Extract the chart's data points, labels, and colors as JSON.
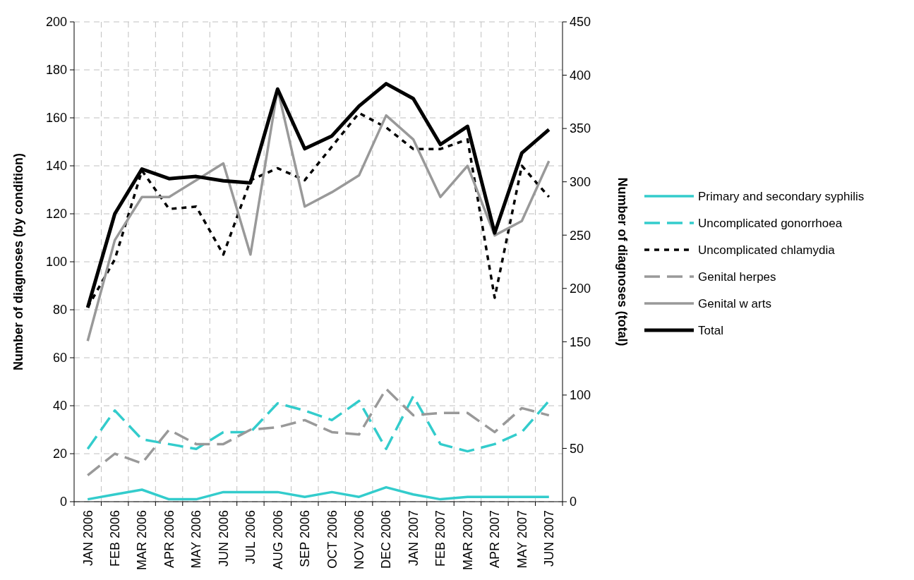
{
  "chart_data": {
    "type": "line",
    "ylabel": "Number of diagnoses (by condition)",
    "y2label": "Number of diagnoses (total)",
    "categories": [
      "JAN 2006",
      "FEB 2006",
      "MAR 2006",
      "APR 2006",
      "MAY 2006",
      "JUN 2006",
      "JUL 2006",
      "AUG 2006",
      "SEP 2006",
      "OCT 2006",
      "NOV 2006",
      "DEC 2006",
      "JAN 2007",
      "FEB 2007",
      "MAR 2007",
      "APR 2007",
      "MAY 2007",
      "JUN 2007"
    ],
    "series": [
      {
        "name": "Primary and secondary syphilis",
        "color": "#33cccc",
        "line_style": "solid",
        "values": [
          1,
          3,
          5,
          1,
          1,
          4,
          4,
          4,
          2,
          4,
          2,
          6,
          3,
          1,
          2,
          2,
          2,
          2
        ]
      },
      {
        "name": "Uncomplicated gonorrhoea",
        "color": "#33cccc",
        "line_style": "dashed",
        "values": [
          22,
          38,
          26,
          24,
          22,
          29,
          29,
          41,
          38,
          34,
          42,
          22,
          44,
          24,
          21,
          24,
          29,
          42
        ]
      },
      {
        "name": "Uncomplicated chlamydia",
        "color": "#000000",
        "line_style": "dotted",
        "values": [
          81,
          101,
          138,
          122,
          123,
          103,
          134,
          139,
          134,
          148,
          162,
          156,
          147,
          147,
          151,
          85,
          140,
          127
        ]
      },
      {
        "name": "Genital herpes",
        "color": "#999999",
        "line_style": "dashed",
        "values": [
          11,
          20,
          16,
          30,
          24,
          24,
          30,
          31,
          34,
          29,
          28,
          47,
          36,
          37,
          37,
          29,
          39,
          36
        ]
      },
      {
        "name": "Genital w arts",
        "color": "#999999",
        "line_style": "solid",
        "values": [
          67,
          109,
          127,
          127,
          134,
          141,
          103,
          172,
          123,
          129,
          136,
          161,
          151,
          127,
          140,
          111,
          117,
          142
        ]
      },
      {
        "name": "Total",
        "color": "#000000",
        "line_style": "solid",
        "axis": "y2",
        "values": [
          182,
          270,
          312,
          303,
          305,
          301,
          299,
          387,
          331,
          343,
          371,
          392,
          378,
          335,
          352,
          252,
          327,
          349
        ]
      }
    ],
    "ylim": [
      0,
      200
    ],
    "yticks": [
      0,
      20,
      40,
      60,
      80,
      100,
      120,
      140,
      160,
      180,
      200
    ],
    "y2lim": [
      0,
      450
    ],
    "y2ticks": [
      0,
      50,
      100,
      150,
      200,
      250,
      300,
      350,
      400,
      450
    ],
    "grid": true,
    "legend": "right"
  }
}
